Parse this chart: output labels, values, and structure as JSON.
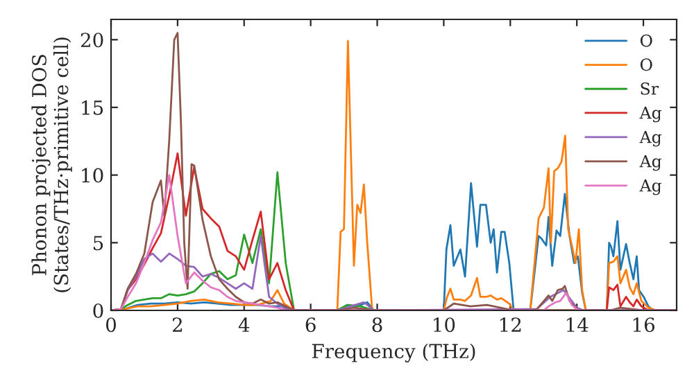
{
  "chart_data": {
    "type": "line",
    "xlabel": "Frequency (THz)",
    "ylabel": "Phonon projected DOS\n(States/THz·primitive cell)",
    "xlim": [
      0,
      17
    ],
    "ylim": [
      0,
      21.5
    ],
    "xticks": [
      0,
      2,
      4,
      6,
      8,
      10,
      12,
      14,
      16
    ],
    "yticks": [
      0,
      5,
      10,
      15,
      20
    ],
    "grid": false,
    "legend": "top right",
    "marker": "none",
    "line_style": "solid",
    "series": [
      {
        "name": "O",
        "color": "#1f77b4",
        "x": [
          0,
          0.4,
          0.8,
          1.2,
          1.6,
          2.0,
          2.4,
          2.8,
          3.2,
          3.6,
          4.0,
          4.4,
          4.8,
          5.2,
          5.5,
          6.8,
          7.1,
          7.4,
          7.7,
          7.9,
          10.0,
          10.08,
          10.2,
          10.3,
          10.5,
          10.64,
          10.82,
          11.0,
          11.1,
          11.27,
          11.41,
          11.5,
          11.6,
          11.73,
          11.83,
          11.97,
          12.1,
          12.6,
          12.85,
          12.94,
          13.08,
          13.15,
          13.26,
          13.39,
          13.5,
          13.64,
          13.78,
          13.92,
          14.03,
          14.16,
          14.27,
          14.9,
          14.97,
          15.03,
          15.1,
          15.22,
          15.31,
          15.48,
          15.59,
          15.7,
          15.8,
          15.87,
          16.01,
          16.15,
          16.29,
          17
        ],
        "values": [
          0,
          0.1,
          0.4,
          0.5,
          0.5,
          0.6,
          0.5,
          0.6,
          0.5,
          0.4,
          0.4,
          0.4,
          0.3,
          0.3,
          0,
          0,
          0.4,
          0.3,
          0.6,
          0,
          0,
          4.5,
          6.3,
          3.3,
          4.5,
          2.5,
          9.4,
          4.7,
          7.8,
          7.8,
          5.0,
          6.0,
          2.8,
          5.8,
          5.8,
          3.5,
          0,
          0,
          5.5,
          5.3,
          4.8,
          6.9,
          3.3,
          5.9,
          5.5,
          8.6,
          5.5,
          3.5,
          4.0,
          1.3,
          0,
          0,
          5.0,
          4.7,
          4.0,
          6.6,
          3.0,
          4.9,
          3.5,
          2.3,
          4.0,
          1.5,
          1.0,
          0.3,
          0,
          0
        ]
      },
      {
        "name": "O",
        "color": "#ff7f0e",
        "x": [
          0,
          0.4,
          0.8,
          1.2,
          1.6,
          2.0,
          2.4,
          2.8,
          3.2,
          3.6,
          4.0,
          4.4,
          4.8,
          5.0,
          5.2,
          5.5,
          6.8,
          6.9,
          7.0,
          7.12,
          7.3,
          7.4,
          7.5,
          7.6,
          7.7,
          7.85,
          10.0,
          10.1,
          10.2,
          10.3,
          10.5,
          10.64,
          10.82,
          11.0,
          11.1,
          11.27,
          11.41,
          11.6,
          11.73,
          11.97,
          12.1,
          12.6,
          12.85,
          13.01,
          13.15,
          13.22,
          13.32,
          13.43,
          13.54,
          13.65,
          13.74,
          13.85,
          13.96,
          14.06,
          14.16,
          14.27,
          14.9,
          14.97,
          15.1,
          15.22,
          15.31,
          15.48,
          15.59,
          15.7,
          15.8,
          15.94,
          16.15,
          16.4,
          17
        ],
        "values": [
          0,
          0.1,
          0.3,
          0.3,
          0.4,
          0.5,
          0.7,
          0.8,
          0.6,
          0.5,
          0.4,
          0.4,
          0.7,
          1.5,
          0.5,
          0,
          0,
          5.8,
          6.0,
          19.9,
          3.3,
          7.8,
          7.2,
          9.3,
          5.0,
          0,
          0,
          1.0,
          1.6,
          0.8,
          0.8,
          0.7,
          1.1,
          2.4,
          1.0,
          1.0,
          1.1,
          0.8,
          0.9,
          0.5,
          0,
          0,
          6.8,
          7.6,
          10.5,
          5.0,
          10.3,
          10.5,
          11.0,
          12.9,
          6.0,
          4.8,
          3.5,
          6.0,
          1.5,
          0,
          0,
          3.5,
          3.6,
          4.0,
          2.0,
          3.0,
          1.7,
          1.2,
          2.0,
          0.7,
          0.2,
          0,
          0
        ]
      },
      {
        "name": "Sr",
        "color": "#2ca02c",
        "x": [
          0,
          0.3,
          0.5,
          0.75,
          1.0,
          1.25,
          1.5,
          1.75,
          2.0,
          2.25,
          2.5,
          2.75,
          3.0,
          3.25,
          3.5,
          3.75,
          4.0,
          4.25,
          4.5,
          4.75,
          5.0,
          5.25,
          5.5,
          6.8,
          7.1,
          7.5,
          7.9,
          17
        ],
        "values": [
          0,
          0.1,
          0.4,
          0.7,
          0.8,
          0.9,
          0.9,
          1.2,
          1.1,
          1.2,
          1.4,
          2.0,
          2.7,
          2.9,
          2.3,
          2.6,
          5.6,
          3.5,
          6.0,
          2.0,
          10.2,
          3.5,
          0,
          0,
          0.4,
          0.3,
          0,
          0
        ]
      },
      {
        "name": "Ag",
        "color": "#d62728",
        "x": [
          0,
          0.3,
          0.5,
          0.75,
          1.0,
          1.25,
          1.5,
          1.75,
          2.0,
          2.25,
          2.5,
          2.75,
          3.0,
          3.25,
          3.5,
          3.75,
          4.0,
          4.25,
          4.5,
          4.75,
          5.0,
          5.25,
          5.5,
          14.9,
          14.97,
          15.1,
          15.22,
          15.31,
          15.48,
          15.59,
          15.7,
          15.8,
          15.94,
          16.15,
          17
        ],
        "values": [
          0,
          0.1,
          1.5,
          2.3,
          3.4,
          4.6,
          5.7,
          8.5,
          11.6,
          7.0,
          10.6,
          7.5,
          6.8,
          6.2,
          4.4,
          4.0,
          3.0,
          5.2,
          7.3,
          2.3,
          3.5,
          1.5,
          0,
          0,
          1.7,
          1.5,
          1.9,
          0.3,
          1.0,
          0.6,
          0.3,
          0.8,
          0.3,
          0,
          0
        ]
      },
      {
        "name": "Ag",
        "color": "#9467bd",
        "x": [
          0,
          0.3,
          0.5,
          0.75,
          1.0,
          1.25,
          1.5,
          1.75,
          2.0,
          2.25,
          2.5,
          2.75,
          3.0,
          3.25,
          3.5,
          3.75,
          4.0,
          4.25,
          4.5,
          4.75,
          5.0,
          5.25,
          5.5,
          6.8,
          7.6,
          7.9,
          12.8,
          13.2,
          13.6,
          14.0,
          14.2,
          17
        ],
        "values": [
          0,
          0.1,
          1.5,
          2.5,
          3.8,
          4.2,
          3.6,
          4.2,
          3.8,
          3.3,
          3.2,
          2.5,
          2.7,
          2.4,
          2.0,
          1.6,
          2.0,
          1.6,
          5.5,
          1.0,
          0.5,
          0.1,
          0,
          0,
          0.6,
          0,
          0.1,
          1.0,
          1.5,
          0.2,
          0,
          0
        ]
      },
      {
        "name": "Ag",
        "color": "#8c564b",
        "x": [
          0,
          0.3,
          0.5,
          0.75,
          1.0,
          1.25,
          1.5,
          1.6,
          1.75,
          1.9,
          2.0,
          2.1,
          2.2,
          2.3,
          2.42,
          2.5,
          2.75,
          3.0,
          3.25,
          3.5,
          3.75,
          4.0,
          4.25,
          4.5,
          4.75,
          5.0,
          5.25,
          5.5,
          6.8,
          7.3,
          7.9,
          10.0,
          10.3,
          10.8,
          11.3,
          12.1,
          12.6,
          12.8,
          13.01,
          13.15,
          13.26,
          13.43,
          13.57,
          13.64,
          13.78,
          13.92,
          14.06,
          15.0,
          15.3,
          16.0,
          17
        ],
        "values": [
          0,
          0.1,
          1.6,
          2.7,
          4.2,
          8.0,
          9.6,
          7.0,
          12.6,
          20.0,
          20.5,
          14.0,
          5.0,
          1.6,
          10.8,
          10.7,
          6.7,
          4.0,
          2.3,
          1.6,
          1.0,
          0.6,
          0.5,
          0.8,
          0.5,
          0.6,
          0.3,
          0,
          0,
          0.2,
          0,
          0,
          0.5,
          0.3,
          0.4,
          0,
          0,
          0.1,
          0.7,
          1.1,
          0.7,
          1.5,
          1.6,
          1.8,
          0.7,
          0.3,
          0,
          0,
          0.2,
          0,
          0
        ]
      },
      {
        "name": "Ag",
        "color": "#e377c2",
        "x": [
          0,
          0.3,
          0.5,
          0.75,
          1.0,
          1.25,
          1.5,
          1.75,
          2.0,
          2.25,
          2.5,
          2.75,
          3.0,
          3.25,
          3.5,
          3.75,
          4.0,
          4.25,
          4.5,
          4.75,
          5.0,
          5.25,
          13.0,
          13.15,
          13.36,
          13.5,
          13.68,
          13.85,
          13.99,
          14.1,
          17
        ],
        "values": [
          0,
          0.1,
          1.0,
          2.0,
          3.5,
          5.2,
          6.5,
          10.0,
          5.5,
          2.0,
          2.8,
          2.2,
          1.7,
          1.5,
          1.0,
          0.7,
          0.6,
          0.5,
          0.4,
          0.3,
          0.2,
          0,
          0,
          0.3,
          0.6,
          0.7,
          1.3,
          0.4,
          0.1,
          0,
          0
        ]
      }
    ]
  }
}
